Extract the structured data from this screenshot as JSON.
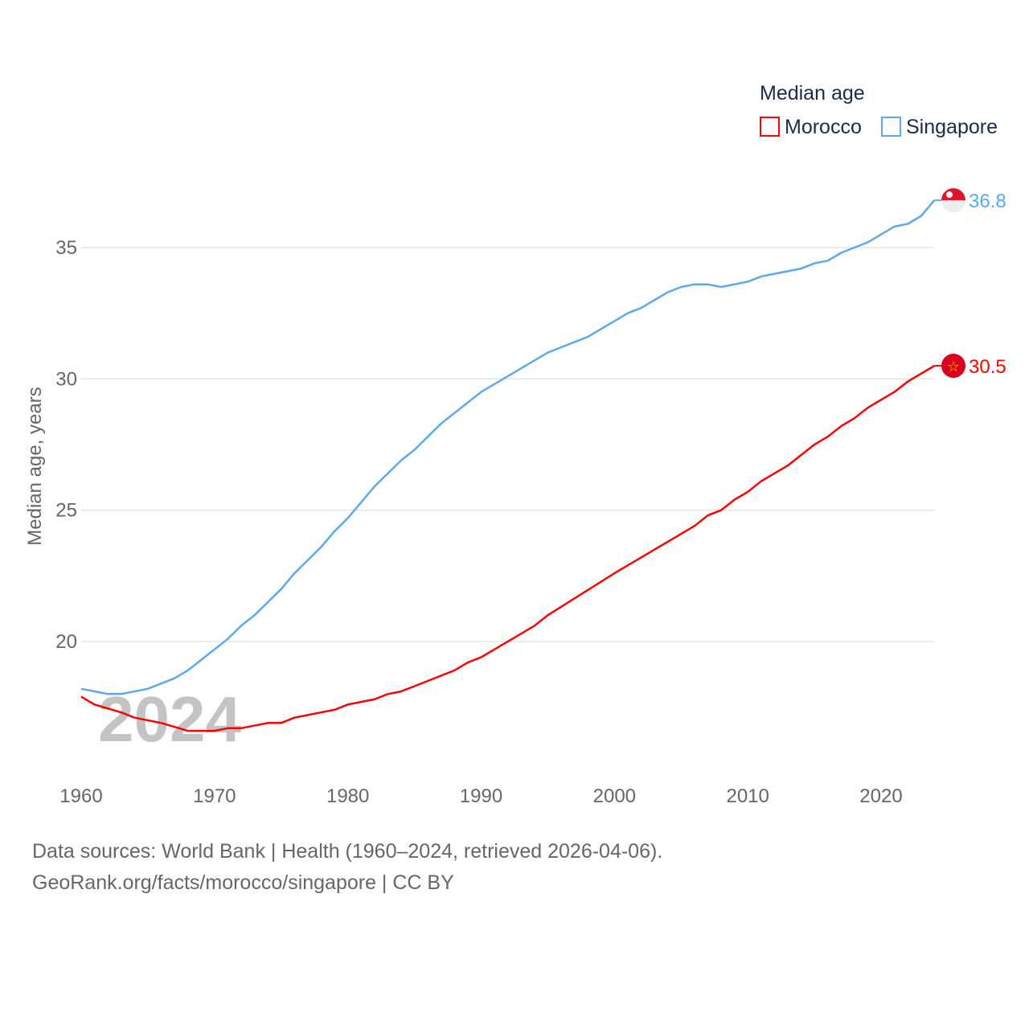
{
  "chart_data": {
    "type": "line",
    "title": "Median age",
    "xlabel": "",
    "ylabel": "Median age, years",
    "xlim": [
      1960,
      2024
    ],
    "ylim": [
      15.5,
      37.5
    ],
    "x_ticks": [
      "1960",
      "1970",
      "1980",
      "1990",
      "2000",
      "2010",
      "2020"
    ],
    "y_ticks": [
      "20",
      "25",
      "30",
      "35"
    ],
    "grid": true,
    "legend_position": "top-right",
    "watermark_year": "2024",
    "series": [
      {
        "name": "Morocco",
        "color": "#ff0000",
        "end_label": "30.5",
        "points": [
          [
            1960,
            17.9
          ],
          [
            1961,
            17.6
          ],
          [
            1963,
            17.3
          ],
          [
            1964,
            17.1
          ],
          [
            1965,
            17.0
          ],
          [
            1966,
            16.9
          ],
          [
            1967,
            16.75
          ],
          [
            1968,
            16.6
          ],
          [
            1970,
            16.6
          ],
          [
            1971,
            16.7
          ],
          [
            1972,
            16.7
          ],
          [
            1974,
            16.9
          ],
          [
            1975,
            16.9
          ],
          [
            1976,
            17.1
          ],
          [
            1978,
            17.3
          ],
          [
            1979,
            17.4
          ],
          [
            1980,
            17.6
          ],
          [
            1982,
            17.8
          ],
          [
            1983,
            18.0
          ],
          [
            1984,
            18.1
          ],
          [
            1986,
            18.5
          ],
          [
            1988,
            18.9
          ],
          [
            1989,
            19.2
          ],
          [
            1990,
            19.4
          ],
          [
            1993,
            20.3
          ],
          [
            1994,
            20.6
          ],
          [
            1995,
            21.0
          ],
          [
            2000,
            22.6
          ],
          [
            2005,
            24.1
          ],
          [
            2006,
            24.4
          ],
          [
            2007,
            24.8
          ],
          [
            2008,
            25.0
          ],
          [
            2009,
            25.4
          ],
          [
            2010,
            25.7
          ],
          [
            2011,
            26.1
          ],
          [
            2013,
            26.7
          ],
          [
            2015,
            27.5
          ],
          [
            2016,
            27.8
          ],
          [
            2017,
            28.2
          ],
          [
            2018,
            28.5
          ],
          [
            2019,
            28.9
          ],
          [
            2021,
            29.5
          ],
          [
            2022,
            29.9
          ],
          [
            2024,
            30.5
          ]
        ]
      },
      {
        "name": "Singapore",
        "color": "#5ea8ec",
        "end_label": "36.8",
        "points": [
          [
            1960,
            18.2
          ],
          [
            1962,
            18.0
          ],
          [
            1963,
            18.0
          ],
          [
            1965,
            18.2
          ],
          [
            1967,
            18.6
          ],
          [
            1968,
            18.9
          ],
          [
            1970,
            19.7
          ],
          [
            1971,
            20.1
          ],
          [
            1972,
            20.6
          ],
          [
            1973,
            21.0
          ],
          [
            1975,
            22.0
          ],
          [
            1976,
            22.6
          ],
          [
            1978,
            23.6
          ],
          [
            1979,
            24.2
          ],
          [
            1980,
            24.7
          ],
          [
            1982,
            25.9
          ],
          [
            1984,
            26.9
          ],
          [
            1985,
            27.3
          ],
          [
            1987,
            28.3
          ],
          [
            1990,
            29.5
          ],
          [
            1995,
            31.0
          ],
          [
            1998,
            31.6
          ],
          [
            2001,
            32.5
          ],
          [
            2002,
            32.7
          ],
          [
            2004,
            33.3
          ],
          [
            2005,
            33.5
          ],
          [
            2006,
            33.6
          ],
          [
            2007,
            33.6
          ],
          [
            2008,
            33.5
          ],
          [
            2010,
            33.7
          ],
          [
            2011,
            33.9
          ],
          [
            2014,
            34.2
          ],
          [
            2015,
            34.4
          ],
          [
            2016,
            34.5
          ],
          [
            2017,
            34.8
          ],
          [
            2019,
            35.2
          ],
          [
            2021,
            35.8
          ],
          [
            2022,
            35.9
          ],
          [
            2023,
            36.2
          ],
          [
            2024,
            36.8
          ]
        ]
      }
    ]
  },
  "footer": {
    "sources": "Data sources: World Bank | Health (1960–2024, retrieved 2026-04-06).",
    "credit": "GeoRank.org/facts/morocco/singapore | CC BY"
  }
}
